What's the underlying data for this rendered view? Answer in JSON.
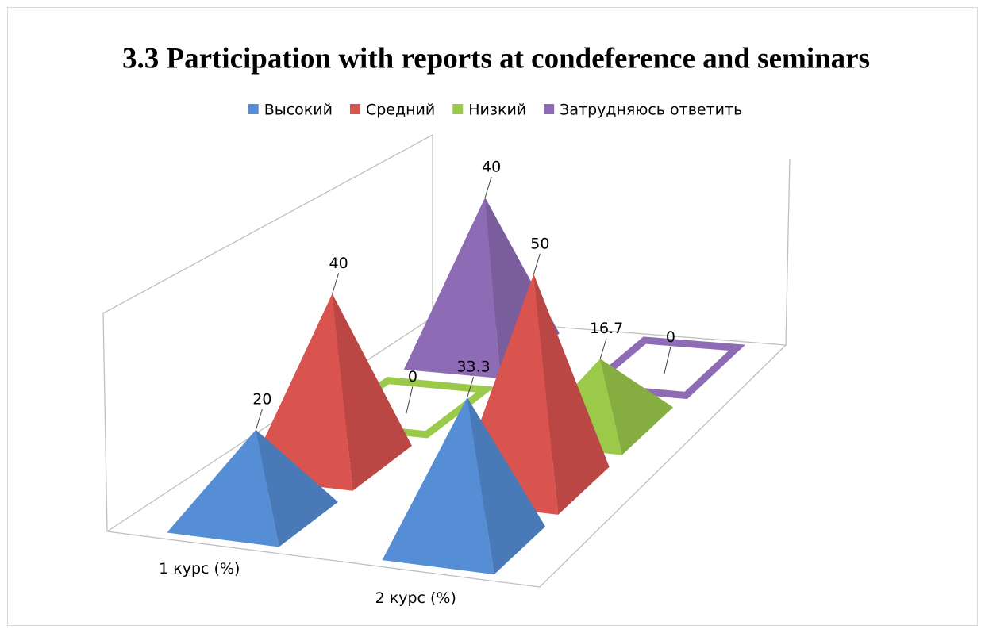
{
  "chart_data": {
    "type": "pyramid3d",
    "title": "3.3 Participation with reports at condeference and seminars",
    "categories": [
      "1 курс (%)",
      "2 курс (%)"
    ],
    "series": [
      {
        "name": "Высокий",
        "color": "#558ed5",
        "values": [
          20,
          33.3
        ]
      },
      {
        "name": "Средний",
        "color": "#d9534f",
        "values": [
          40,
          50
        ]
      },
      {
        "name": "Низкий",
        "color": "#9bc94a",
        "values": [
          0,
          16.7
        ]
      },
      {
        "name": "Затрудняюсь ответить",
        "color": "#8e6cb5",
        "values": [
          40,
          0
        ]
      }
    ],
    "legend": "top"
  }
}
